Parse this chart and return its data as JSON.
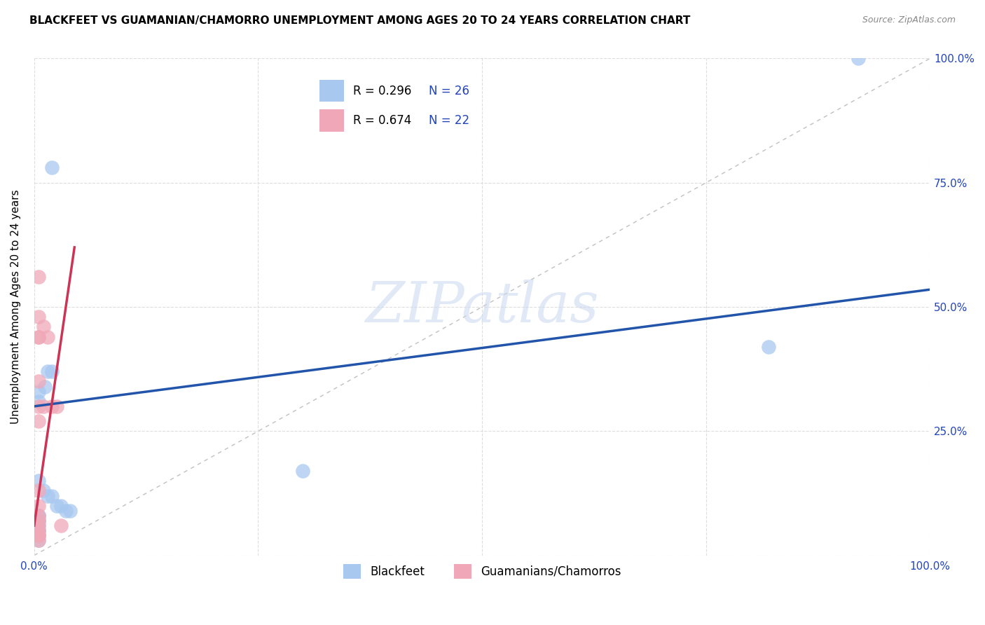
{
  "title": "BLACKFEET VS GUAMANIAN/CHAMORRO UNEMPLOYMENT AMONG AGES 20 TO 24 YEARS CORRELATION CHART",
  "source": "Source: ZipAtlas.com",
  "ylabel": "Unemployment Among Ages 20 to 24 years",
  "xlim": [
    0.0,
    1.0
  ],
  "ylim": [
    0.0,
    1.0
  ],
  "xticks": [
    0.0,
    0.25,
    0.5,
    0.75,
    1.0
  ],
  "yticks": [
    0.0,
    0.25,
    0.5,
    0.75,
    1.0
  ],
  "xtick_labels": [
    "0.0%",
    "",
    "",
    "",
    "100.0%"
  ],
  "left_ytick_labels": [
    "",
    "",
    "",
    "",
    ""
  ],
  "right_ytick_labels": [
    "",
    "25.0%",
    "50.0%",
    "75.0%",
    "100.0%"
  ],
  "watermark_zip": "ZIP",
  "watermark_atlas": "atlas",
  "blue_color": "#A8C8F0",
  "pink_color": "#F0A8B8",
  "blue_line_color": "#2255AA",
  "pink_line_color": "#CC3355",
  "diagonal_color": "#C0C0C0",
  "legend_R_blue": "R = 0.296",
  "legend_N_blue": "N = 26",
  "legend_R_pink": "R = 0.674",
  "legend_N_pink": "N = 22",
  "legend_label_blue": "Blackfeet",
  "legend_label_pink": "Guamanians/Chamorros",
  "blue_scatter_x": [
    0.02,
    0.02,
    0.015,
    0.012,
    0.005,
    0.005,
    0.005,
    0.01,
    0.015,
    0.02,
    0.025,
    0.03,
    0.035,
    0.04,
    0.005,
    0.005,
    0.005,
    0.005,
    0.005,
    0.005,
    0.005,
    0.005,
    0.005,
    0.3,
    0.82,
    0.92
  ],
  "blue_scatter_y": [
    0.78,
    0.37,
    0.37,
    0.34,
    0.33,
    0.31,
    0.15,
    0.13,
    0.12,
    0.12,
    0.1,
    0.1,
    0.09,
    0.09,
    0.08,
    0.08,
    0.07,
    0.07,
    0.06,
    0.05,
    0.05,
    0.04,
    0.03,
    0.17,
    0.42,
    1.0
  ],
  "pink_scatter_x": [
    0.005,
    0.005,
    0.005,
    0.005,
    0.005,
    0.005,
    0.005,
    0.005,
    0.005,
    0.005,
    0.005,
    0.005,
    0.01,
    0.01,
    0.015,
    0.02,
    0.025,
    0.03,
    0.005,
    0.005,
    0.005,
    0.005
  ],
  "pink_scatter_y": [
    0.56,
    0.48,
    0.44,
    0.44,
    0.35,
    0.3,
    0.27,
    0.13,
    0.1,
    0.08,
    0.05,
    0.04,
    0.46,
    0.3,
    0.44,
    0.3,
    0.3,
    0.06,
    0.07,
    0.06,
    0.04,
    0.03
  ],
  "blue_line_x0": 0.0,
  "blue_line_y0": 0.3,
  "blue_line_x1": 1.0,
  "blue_line_y1": 0.535,
  "pink_line_x0": 0.0,
  "pink_line_y0": 0.06,
  "pink_line_x1": 0.045,
  "pink_line_y1": 0.62
}
